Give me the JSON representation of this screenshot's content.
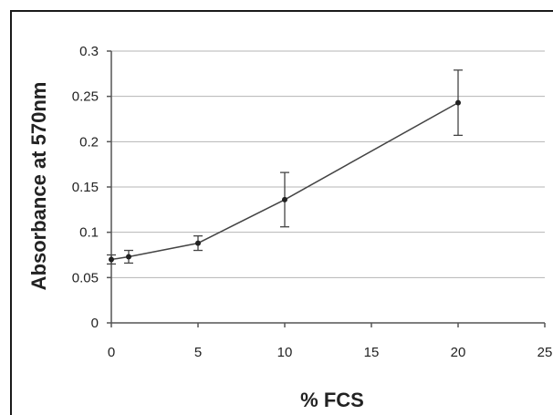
{
  "chart_data": {
    "type": "line",
    "title": "",
    "xlabel": "% FCS",
    "ylabel": "Absorbance at 570nm",
    "xlim": [
      0,
      25
    ],
    "ylim": [
      0,
      0.3
    ],
    "x_ticks": [
      "0",
      "5",
      "10",
      "15",
      "20",
      "25"
    ],
    "y_ticks": [
      "0",
      "0.05",
      "0.1",
      "0.15",
      "0.2",
      "0.25",
      "0.3"
    ],
    "grid": true,
    "legend": "none",
    "series": [
      {
        "x": [
          0,
          1,
          5,
          10,
          20
        ],
        "y": [
          0.07,
          0.073,
          0.088,
          0.136,
          0.243
        ],
        "error": [
          0.005,
          0.007,
          0.008,
          0.03,
          0.036
        ],
        "color": "#444444"
      }
    ]
  }
}
